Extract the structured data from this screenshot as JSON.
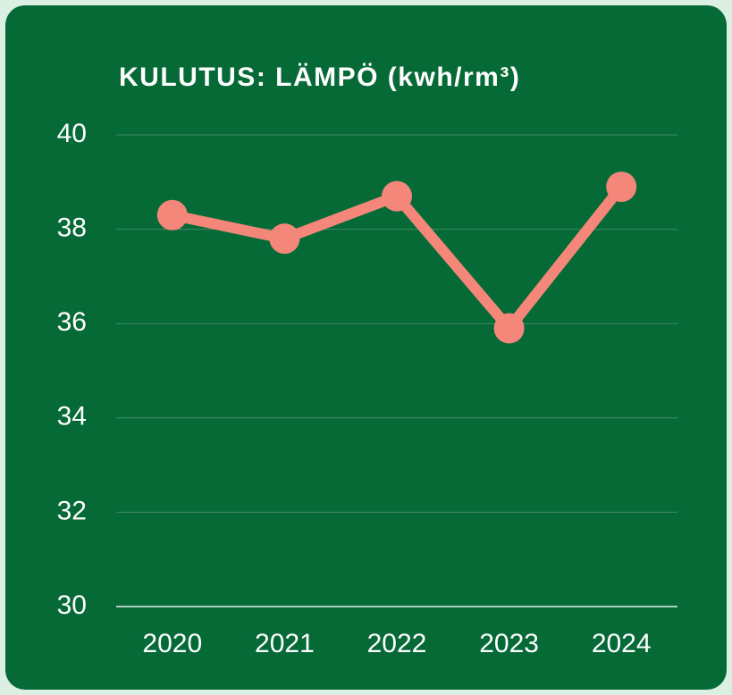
{
  "chart_data": {
    "type": "line",
    "title": "KULUTUS: LÄMPÖ (kwh/rm³)",
    "categories": [
      "2020",
      "2021",
      "2022",
      "2023",
      "2024"
    ],
    "series": [
      {
        "name": "Lämpö",
        "color": "#f4877a",
        "values": [
          38.3,
          37.8,
          38.7,
          35.9,
          38.9
        ]
      }
    ],
    "ylim": [
      30,
      40
    ],
    "yticks": [
      30,
      32,
      34,
      36,
      38,
      40
    ],
    "grid": true
  }
}
